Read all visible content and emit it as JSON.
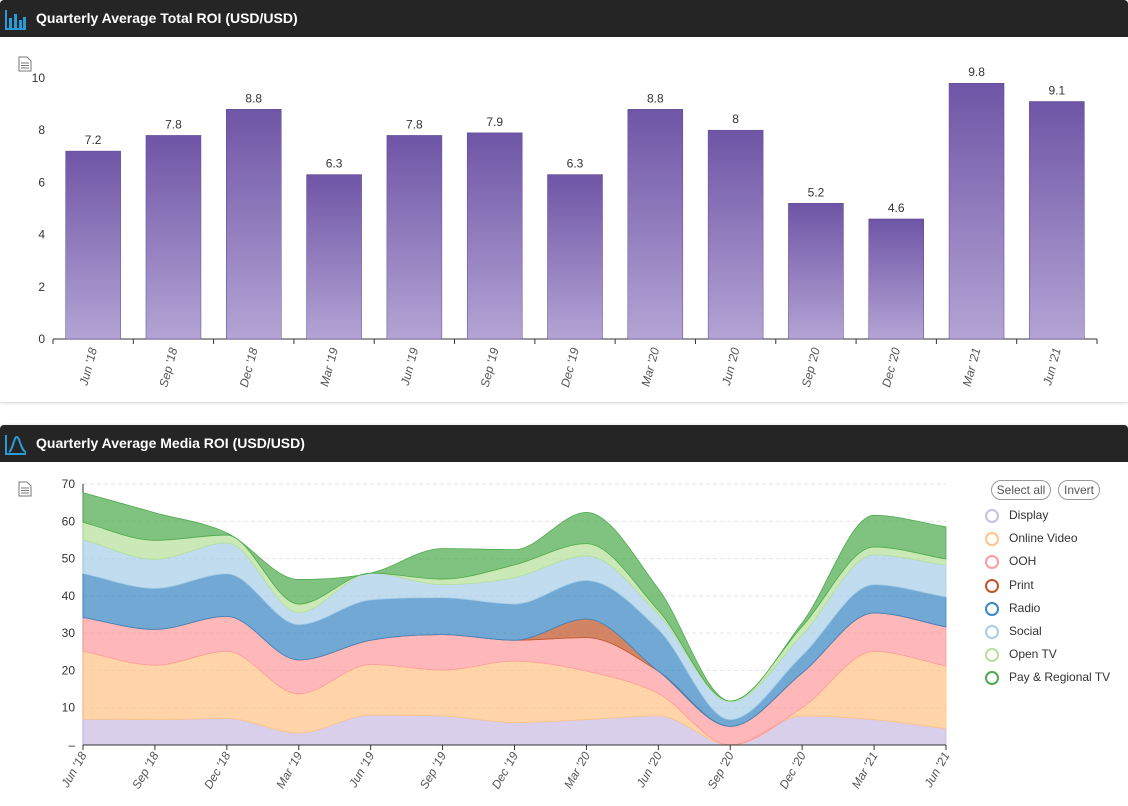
{
  "panels": {
    "total": {
      "title": "Quarterly Average Total ROI (USD/USD)"
    },
    "media": {
      "title": "Quarterly Average Media ROI (USD/USD)"
    }
  },
  "legend": {
    "select_all": "Select all",
    "invert": "Invert"
  },
  "colors": {
    "bar_top": "#6f55a6",
    "bar_bottom": "#b3a4d4",
    "header_bg": "#252525",
    "header_icon": "#2a9bd6"
  },
  "chart_data": [
    {
      "type": "bar",
      "title": "Quarterly Average Total ROI (USD/USD)",
      "categories": [
        "Jun '18",
        "Sep '18",
        "Dec '18",
        "Mar '19",
        "Jun '19",
        "Sep '19",
        "Dec '19",
        "Mar '20",
        "Jun '20",
        "Sep '20",
        "Dec '20",
        "Mar '21",
        "Jun '21"
      ],
      "values": [
        7.2,
        7.8,
        8.8,
        6.3,
        7.8,
        7.9,
        6.3,
        8.8,
        8,
        5.2,
        4.6,
        9.8,
        9.1
      ],
      "ylim": [
        0,
        10
      ],
      "yticks": [
        0,
        2,
        4,
        6,
        8,
        10
      ],
      "grid": false,
      "data_labels": true
    },
    {
      "type": "area",
      "stacked": true,
      "title": "Quarterly Average Media ROI (USD/USD)",
      "categories": [
        "Jun '18",
        "Sep '18",
        "Dec '18",
        "Mar '19",
        "Jun '19",
        "Sep '19",
        "Dec '19",
        "Mar '20",
        "Jun '20",
        "Sep '20",
        "Dec '20",
        "Mar '21",
        "Jun '21"
      ],
      "ylim": [
        0,
        70
      ],
      "yticks": [
        0,
        10,
        20,
        30,
        40,
        50,
        60,
        70
      ],
      "grid": true,
      "legend_position": "right",
      "series": [
        {
          "name": "Display",
          "color": "#cbbde3",
          "values": [
            6.9,
            6.8,
            7.1,
            3.2,
            8,
            7.8,
            6,
            6.8,
            7.8,
            0,
            7.8,
            6.8,
            4.4
          ]
        },
        {
          "name": "Online Video",
          "color": "#ffc487",
          "values": [
            18.2,
            14.6,
            18,
            10.5,
            13.6,
            12.3,
            16.5,
            13,
            6,
            0,
            2.2,
            18.3,
            16.8
          ]
        },
        {
          "name": "OOH",
          "color": "#ff9c9f",
          "values": [
            9.1,
            9.6,
            9.4,
            9.1,
            6.5,
            9.5,
            5.6,
            9,
            6,
            5,
            9.3,
            10.3,
            10.5
          ]
        },
        {
          "name": "Print",
          "color": "#c0562a",
          "values": [
            0,
            0,
            0,
            0,
            0,
            0,
            0,
            5,
            0,
            0,
            0,
            0,
            0
          ]
        },
        {
          "name": "Radio",
          "color": "#3b88c4",
          "values": [
            11.8,
            11,
            11.4,
            9.5,
            10.8,
            9.9,
            9.7,
            10.3,
            11.2,
            1.8,
            4.7,
            7.6,
            8
          ]
        },
        {
          "name": "Social",
          "color": "#a9cfe8",
          "values": [
            9.1,
            7.8,
            8.3,
            3.2,
            7.2,
            3.5,
            7.1,
            6.6,
            4.1,
            4.8,
            5.5,
            8,
            8.5
          ]
        },
        {
          "name": "Open TV",
          "color": "#b5e19a",
          "values": [
            4.6,
            5.1,
            2.1,
            2.3,
            0,
            1.5,
            3.4,
            3.3,
            1,
            0.2,
            2.3,
            2.1,
            1.7
          ]
        },
        {
          "name": "Pay & Regional TV",
          "color": "#4fab4f",
          "values": [
            8,
            7.4,
            0.6,
            6.6,
            0,
            8.2,
            4.1,
            8.4,
            5.8,
            0,
            1,
            8.5,
            8.6
          ]
        }
      ]
    }
  ]
}
